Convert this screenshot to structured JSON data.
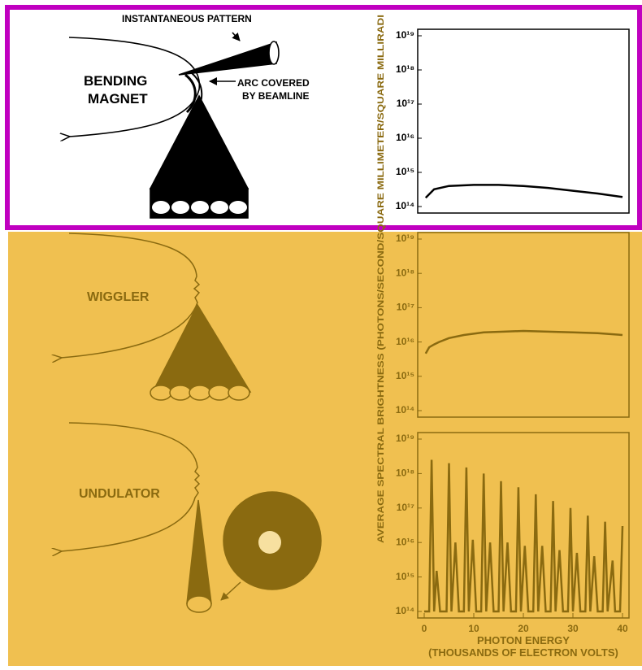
{
  "chart_data": [
    {
      "type": "line",
      "log_y": true,
      "color": "#000000",
      "x": [
        0.3,
        2,
        5,
        10,
        15,
        20,
        25,
        30,
        35,
        40
      ],
      "values": [
        180000000000000.0,
        320000000000000.0,
        400000000000000.0,
        430000000000000.0,
        430000000000000.0,
        400000000000000.0,
        350000000000000.0,
        290000000000000.0,
        240000000000000.0,
        190000000000000.0
      ],
      "xlim": [
        0,
        40
      ],
      "ylim": [
        100000000000000.0,
        1e+19
      ],
      "yticks": [
        {
          "value": 100000000000000.0,
          "label": "10¹⁴"
        },
        {
          "value": 1000000000000000.0,
          "label": "10¹⁵"
        },
        {
          "value": 1e+16,
          "label": "10¹⁶"
        },
        {
          "value": 1e+17,
          "label": "10¹⁷"
        },
        {
          "value": 1e+18,
          "label": "10¹⁸"
        },
        {
          "value": 1e+19,
          "label": "10¹⁹"
        }
      ]
    },
    {
      "type": "line",
      "log_y": true,
      "color": "#8a6a10",
      "x": [
        0.3,
        1,
        2,
        3,
        5,
        8,
        12,
        16,
        20,
        25,
        30,
        35,
        40
      ],
      "values": [
        4600000000000000.0,
        7000000000000000.0,
        8500000000000000.0,
        1e+16,
        1.3e+16,
        1.6e+16,
        1.9e+16,
        2e+16,
        2.1e+16,
        2e+16,
        1.9e+16,
        1.8e+16,
        1.6e+16
      ],
      "xlim": [
        0,
        40
      ],
      "ylim": [
        100000000000000.0,
        1e+19
      ],
      "yticks": [
        {
          "value": 100000000000000.0,
          "label": "10¹⁴"
        },
        {
          "value": 1000000000000000.0,
          "label": "10¹⁵"
        },
        {
          "value": 1e+16,
          "label": "10¹⁶"
        },
        {
          "value": 1e+17,
          "label": "10¹⁷"
        },
        {
          "value": 1e+18,
          "label": "10¹⁸"
        },
        {
          "value": 1e+19,
          "label": "10¹⁹"
        }
      ]
    },
    {
      "type": "line",
      "log_y": true,
      "color": "#8a6a10",
      "x": [
        0,
        1,
        1.5,
        2,
        2.5,
        3.2,
        3.8,
        4.5,
        5,
        5.5,
        6.3,
        7,
        7.5,
        8,
        8.5,
        9,
        9.8,
        10.5,
        11.5,
        12,
        12.5,
        13.3,
        14,
        15,
        15.5,
        16,
        16.8,
        17.5,
        18.5,
        19,
        19.5,
        20.3,
        21,
        22,
        22.5,
        23,
        23.8,
        24.5,
        25.5,
        26,
        26.5,
        27.3,
        28,
        29,
        29.5,
        30,
        30.8,
        31.5,
        32.5,
        33,
        33.5,
        34.3,
        35,
        36,
        36.5,
        37,
        38,
        38.5,
        39.5,
        40
      ],
      "values": [
        100000000000000.0,
        100000000000000.0,
        2.5e+18,
        100000000000000.0,
        1500000000000000.0,
        100000000000000.0,
        100000000000000.0,
        100000000000000.0,
        2e+18,
        100000000000000.0,
        1e+16,
        100000000000000.0,
        100000000000000.0,
        100000000000000.0,
        1.5e+18,
        100000000000000.0,
        1.2e+16,
        100000000000000.0,
        100000000000000.0,
        1e+18,
        100000000000000.0,
        1e+16,
        100000000000000.0,
        100000000000000.0,
        6e+17,
        100000000000000.0,
        1e+16,
        100000000000000.0,
        100000000000000.0,
        4e+17,
        100000000000000.0,
        8000000000000000.0,
        100000000000000.0,
        100000000000000.0,
        2.5e+17,
        100000000000000.0,
        8000000000000000.0,
        100000000000000.0,
        100000000000000.0,
        1.6e+17,
        100000000000000.0,
        6000000000000000.0,
        100000000000000.0,
        100000000000000.0,
        1e+17,
        100000000000000.0,
        5000000000000000.0,
        100000000000000.0,
        100000000000000.0,
        6e+16,
        100000000000000.0,
        4000000000000000.0,
        100000000000000.0,
        100000000000000.0,
        4e+16,
        100000000000000.0,
        3000000000000000.0,
        100000000000000.0,
        100000000000000.0,
        3e+16
      ],
      "xlim": [
        0,
        40
      ],
      "ylim": [
        100000000000000.0,
        1e+19
      ],
      "xticks": [
        0,
        10,
        20,
        30,
        40
      ],
      "xlabel": [
        "PHOTON ENERGY",
        "(THOUSANDS OF ELECTRON VOLTS)"
      ],
      "yticks": [
        {
          "value": 100000000000000.0,
          "label": "10¹⁴"
        },
        {
          "value": 1000000000000000.0,
          "label": "10¹⁵"
        },
        {
          "value": 1e+16,
          "label": "10¹⁶"
        },
        {
          "value": 1e+17,
          "label": "10¹⁷"
        },
        {
          "value": 1e+18,
          "label": "10¹⁸"
        },
        {
          "value": 1e+19,
          "label": "10¹⁹"
        }
      ]
    }
  ],
  "ylabel": "AVERAGE SPECTRAL BRIGHTNESS (PHOTONS/SECOND/SQUARE MILLIMETER/SQUARE MILLIRADI",
  "diagram": {
    "instantaneous": "INSTANTANEOUS PATTERN",
    "bending": [
      "BENDING",
      "MAGNET"
    ],
    "arc": [
      "ARC COVERED",
      "BY BEAMLINE"
    ],
    "wiggler": "WIGGLER",
    "undulator": "UNDULATOR"
  }
}
